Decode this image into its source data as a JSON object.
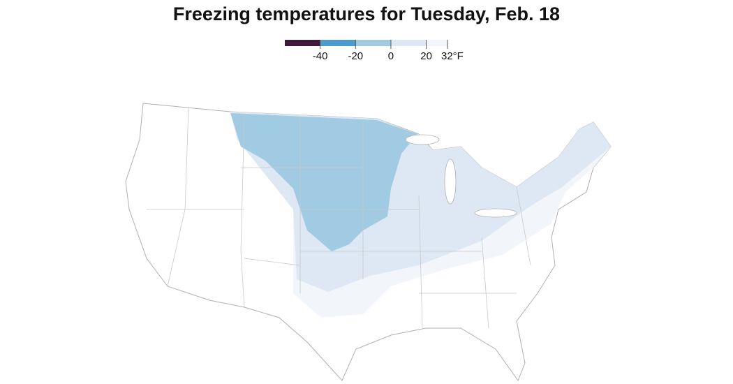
{
  "title": "Freezing temperatures for Tuesday, Feb. 18",
  "legend": {
    "xlim": [
      -60,
      32
    ],
    "ticks": [
      -40,
      -20,
      0,
      20,
      {
        "value": 32,
        "label": "32°F"
      }
    ],
    "bins": [
      {
        "from": -60,
        "to": -40,
        "color": "#3f1a3d"
      },
      {
        "from": -40,
        "to": -20,
        "color": "#4b9bd0"
      },
      {
        "from": -20,
        "to": 0,
        "color": "#a1cbe2"
      },
      {
        "from": 0,
        "to": 20,
        "color": "#dde8f4"
      },
      {
        "from": 20,
        "to": 32,
        "color": "#f2f6fb"
      }
    ]
  }
}
